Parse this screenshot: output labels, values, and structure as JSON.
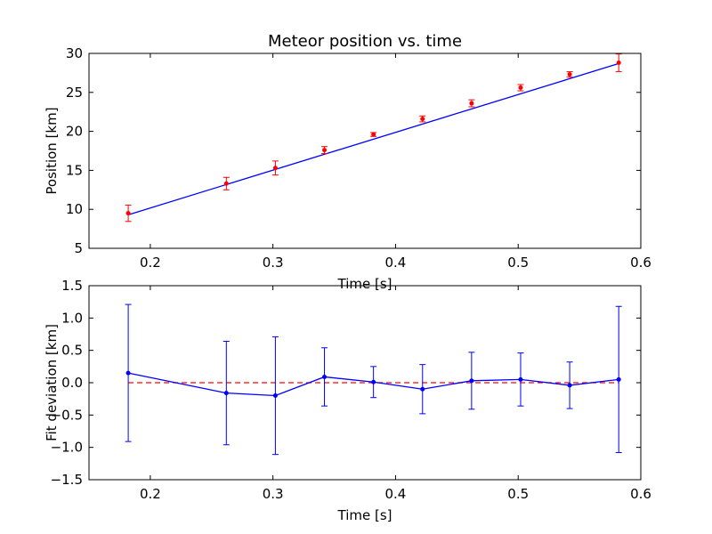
{
  "chart_data": [
    {
      "type": "line",
      "title": "Meteor position vs. time",
      "xlabel": "Time [s]",
      "ylabel": "Position [km]",
      "xlim": [
        0.15,
        0.6
      ],
      "ylim": [
        5,
        30
      ],
      "xticks": [
        "0.2",
        "0.3",
        "0.4",
        "0.5",
        "0.6"
      ],
      "yticks": [
        "5",
        "10",
        "15",
        "20",
        "25",
        "30"
      ],
      "grid": false,
      "series": [
        {
          "kind": "fit-line",
          "color": "#0000ff",
          "x": [
            0.182,
            0.582
          ],
          "y": [
            9.3,
            28.7
          ]
        },
        {
          "kind": "measurements",
          "color": "#ff0000",
          "marker": "dot",
          "x": [
            0.182,
            0.262,
            0.302,
            0.342,
            0.382,
            0.422,
            0.462,
            0.502,
            0.542,
            0.582
          ],
          "y": [
            9.5,
            13.3,
            15.3,
            17.6,
            19.6,
            21.6,
            23.6,
            25.6,
            27.3,
            28.8
          ],
          "yerr": [
            1.05,
            0.8,
            0.9,
            0.45,
            0.25,
            0.38,
            0.45,
            0.4,
            0.35,
            1.13
          ]
        }
      ]
    },
    {
      "type": "line",
      "title": "",
      "xlabel": "Time [s]",
      "ylabel": "Fit deviation [km]",
      "xlim": [
        0.15,
        0.6
      ],
      "ylim": [
        -1.5,
        1.5
      ],
      "xticks": [
        "0.2",
        "0.3",
        "0.4",
        "0.5",
        "0.6"
      ],
      "yticks": [
        "1.5",
        "1.0",
        "0.5",
        "0.0",
        "−0.5",
        "−1.0",
        "−1.5"
      ],
      "grid": false,
      "series": [
        {
          "kind": "zero-reference",
          "color": "#ff0000",
          "dashed": true,
          "x": [
            0.182,
            0.582
          ],
          "y": [
            0,
            0
          ]
        },
        {
          "kind": "residuals",
          "color": "#0000ff",
          "marker": "dot",
          "x": [
            0.182,
            0.262,
            0.302,
            0.342,
            0.382,
            0.422,
            0.462,
            0.502,
            0.542,
            0.582
          ],
          "y": [
            0.15,
            -0.16,
            -0.2,
            0.09,
            0.01,
            -0.1,
            0.03,
            0.05,
            -0.04,
            0.05
          ],
          "yerr": [
            1.06,
            0.8,
            0.91,
            0.45,
            0.24,
            0.38,
            0.44,
            0.41,
            0.36,
            1.13
          ]
        }
      ]
    }
  ]
}
